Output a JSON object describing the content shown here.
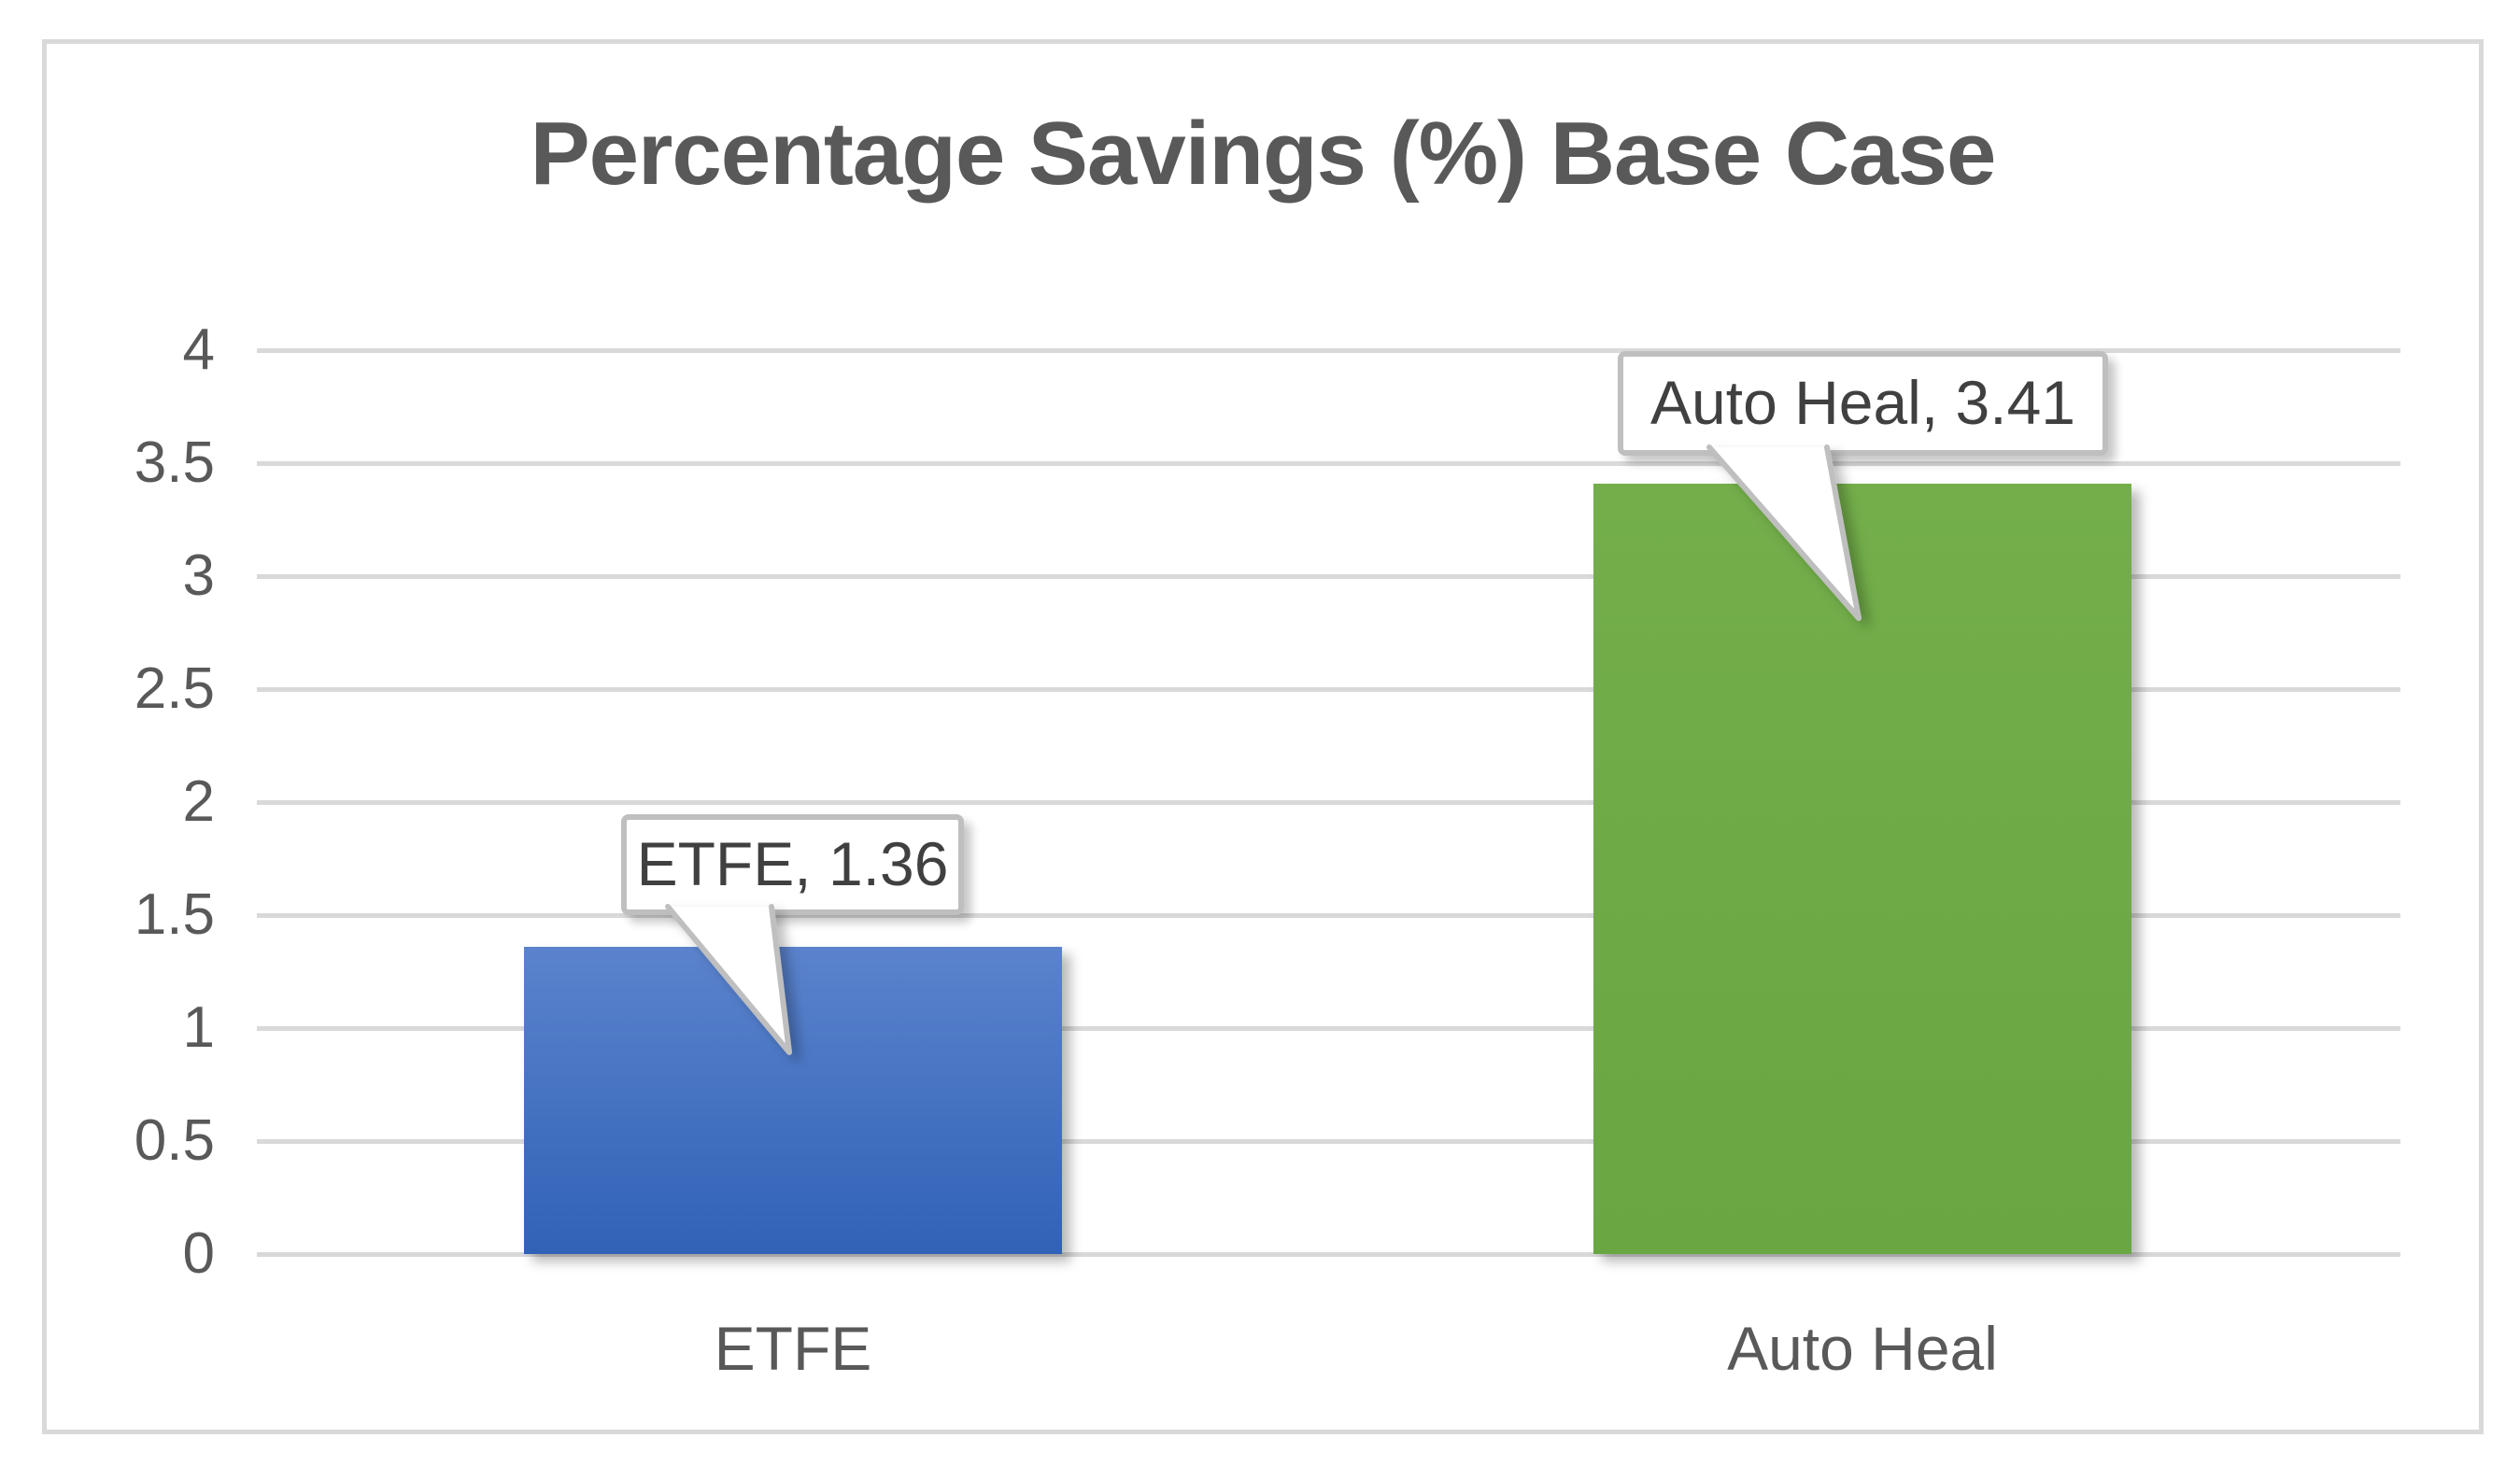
{
  "title": "Percentage Savings (%) Base Case",
  "chart_data": {
    "type": "bar",
    "title": "Percentage Savings (%) Base Case",
    "categories": [
      "ETFE",
      "Auto Heal"
    ],
    "values": [
      1.36,
      3.41
    ],
    "data_labels": [
      "ETFE, 1.36",
      "Auto Heal, 3.41"
    ],
    "yticks": [
      0,
      0.5,
      1,
      1.5,
      2,
      2.5,
      3,
      3.5,
      4
    ],
    "ylim": [
      0,
      4
    ],
    "xlabel": "",
    "ylabel": "",
    "grid": true,
    "legend_position": "none",
    "bar_colors": [
      {
        "name": "blue-gradient",
        "top": "#5b83cd",
        "bottom": "#3062b6"
      },
      {
        "name": "green",
        "top": "#73ae4a",
        "bottom": "#69a743"
      }
    ],
    "colors": {
      "grid": "#d9d9d9",
      "frame_border": "#d9d9d9",
      "axis_text": "#595959",
      "title_text": "#595959",
      "callout_text": "#404040",
      "callout_border": "#bfbfbf",
      "callout_bg": "#ffffff",
      "background": "#ffffff"
    }
  }
}
